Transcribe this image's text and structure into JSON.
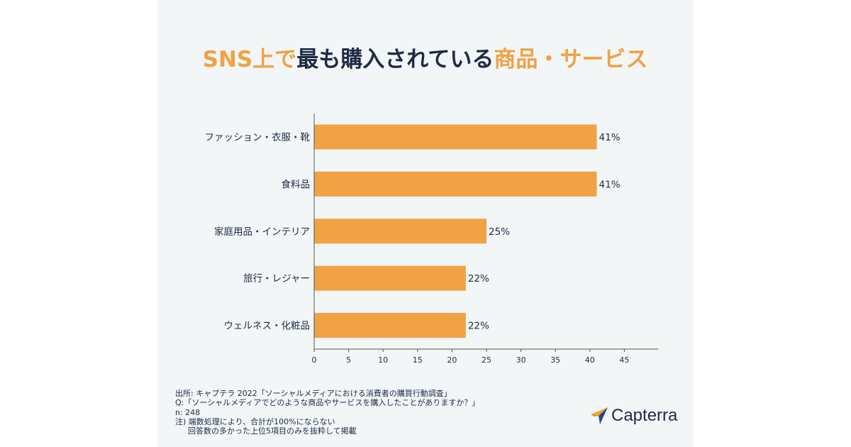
{
  "title": {
    "accent1": "SNS上で",
    "main": "最も購入されている",
    "accent2": "商品・サービス"
  },
  "colors": {
    "accent": "#f0a245",
    "text": "#1f2a44",
    "panel": "#f2f6f7",
    "axis": "#555555",
    "logo_orange": "#f2a33a",
    "logo_blue": "#1e4d8c"
  },
  "chart_data": {
    "type": "bar",
    "orientation": "horizontal",
    "categories": [
      "ファッション・衣服・靴",
      "食料品",
      "家庭用品・インテリア",
      "旅行・レジャー",
      "ウェルネス・化粧品"
    ],
    "values": [
      41,
      41,
      25,
      22,
      22
    ],
    "data_labels": [
      "41%",
      "41%",
      "25%",
      "22%",
      "22%"
    ],
    "xlim": [
      0,
      50
    ],
    "xticks": [
      0,
      5,
      10,
      15,
      20,
      25,
      30,
      35,
      40,
      45
    ],
    "grid": false,
    "bar_color": "#f0a245"
  },
  "footnote": {
    "source": "出所: キャプテラ 2022「ソーシャルメディアにおける消費者の購買行動調査」",
    "question": "Q:「ソーシャルメディアでどのような商品やサービスを購入したことがありますか？」",
    "n": "n: 248",
    "note1": "注)  端数処理により、合計が100%にならない",
    "note2": "回答数の多かった上位5項目のみを抜粋して掲載"
  },
  "logo": {
    "text": "Capterra",
    "icon": "capterra-arrow-icon"
  }
}
